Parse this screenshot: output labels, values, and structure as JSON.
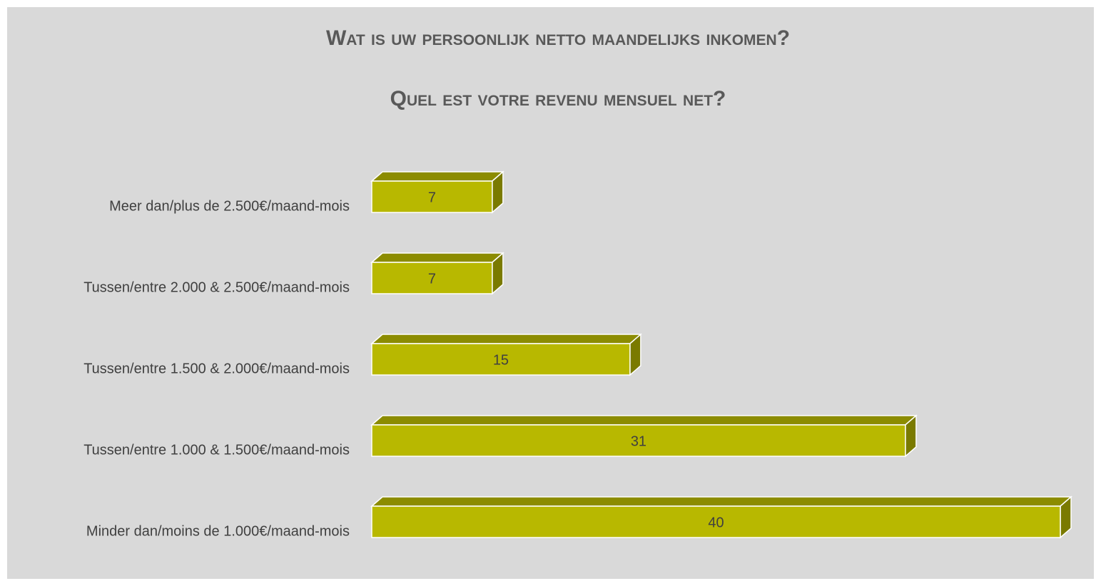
{
  "chart_data": {
    "type": "bar3d",
    "orientation": "horizontal",
    "title": "Wat is uw persoonlijk netto maandelijks inkomen?",
    "subtitle": "Quel est votre revenu mensuel net?",
    "categories": [
      "Meer dan/plus de 2.500€/maand-mois",
      "Tussen/entre 2.000 & 2.500€/maand-mois",
      "Tussen/entre 1.500 & 2.000€/maand-mois",
      "Tussen/entre 1.000 & 1.500€/maand-mois",
      "Minder dan/moins de 1.000€/maand-mois"
    ],
    "values": [
      7,
      7,
      15,
      31,
      40
    ],
    "color": "#b8b800",
    "xlim": [
      0,
      40
    ]
  }
}
